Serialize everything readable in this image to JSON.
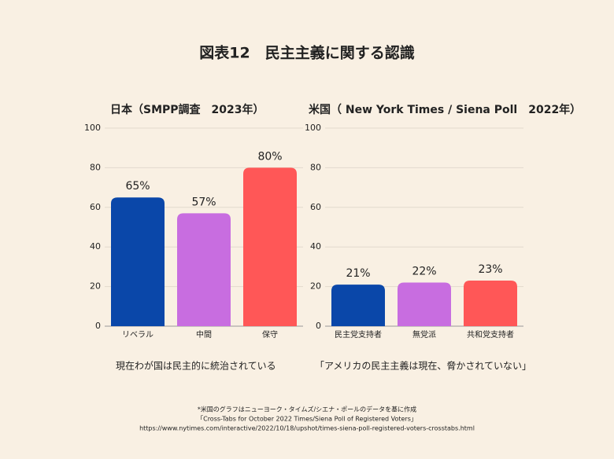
{
  "title": "図表12　民主主義に関する認識",
  "chart_data": [
    {
      "type": "bar",
      "title": "日本（SMPP調査　2023年）",
      "categories": [
        "リベラル",
        "中間",
        "保守"
      ],
      "values": [
        65,
        57,
        80
      ],
      "value_labels": [
        "65%",
        "57%",
        "80%"
      ],
      "colors": [
        "#0a47a9",
        "#c86de0",
        "#ff5757"
      ],
      "ylim": [
        0,
        100
      ],
      "yticks": [
        0,
        20,
        40,
        60,
        80,
        100
      ],
      "grid": true,
      "caption": "現在わが国は民主的に統治されている"
    },
    {
      "type": "bar",
      "title": "米国（ New York Times / Siena Poll　2022年）",
      "categories": [
        "民主党支持者",
        "無党派",
        "共和党支持者"
      ],
      "values": [
        21,
        22,
        23
      ],
      "value_labels": [
        "21%",
        "22%",
        "23%"
      ],
      "colors": [
        "#0a47a9",
        "#c86de0",
        "#ff5757"
      ],
      "ylim": [
        0,
        100
      ],
      "yticks": [
        0,
        20,
        40,
        60,
        80,
        100
      ],
      "grid": true,
      "caption": "「アメリカの民主主義は現在、脅かされていない」"
    }
  ],
  "footnotes": [
    "*米国のグラフはニューヨーク・タイムズ/シエナ・ポールのデータを基に作成",
    "「Cross-Tabs for October 2022 Times/Siena Poll of Registered Voters」",
    "https://www.nytimes.com/interactive/2022/10/18/upshot/times-siena-poll-registered-voters-crosstabs.html"
  ]
}
